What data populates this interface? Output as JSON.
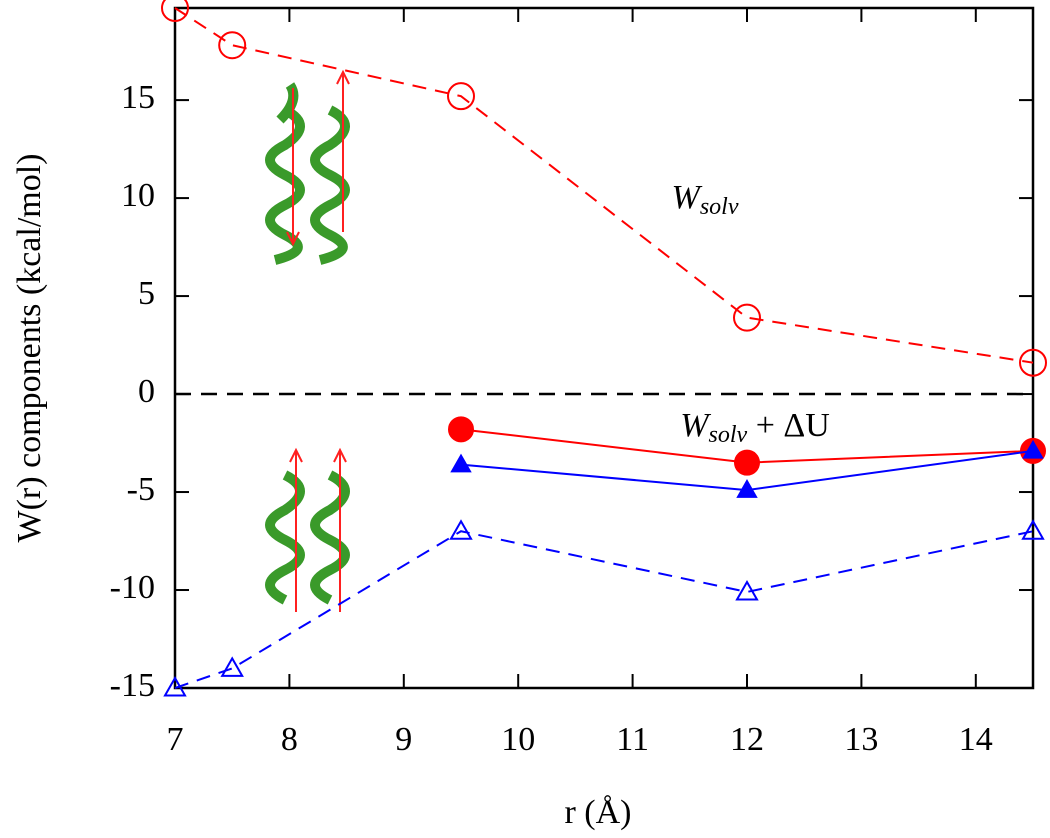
{
  "chart_data": {
    "type": "line",
    "xlabel": "r (Å)",
    "ylabel": "W(r) components (kcal/mol)",
    "xlim": [
      7,
      14.5
    ],
    "ylim": [
      -15,
      19.7
    ],
    "xticks": [
      7,
      8,
      9,
      10,
      11,
      12,
      13,
      14
    ],
    "yticks": [
      -15,
      -10,
      -5,
      0,
      5,
      10,
      15
    ],
    "zero_line": true,
    "annotations": [
      {
        "parts": [
          "W",
          "solv"
        ]
      },
      {
        "parts": [
          "W",
          "solv",
          " + ΔU"
        ]
      }
    ],
    "series": [
      {
        "color": "#ff0000",
        "linestyle": "dashed",
        "marker": "circle",
        "filled": false,
        "x": [
          7,
          7.5,
          9.5,
          12,
          14.5
        ],
        "values": [
          19.7,
          17.8,
          15.2,
          3.9,
          1.6
        ]
      },
      {
        "color": "#ff0000",
        "linestyle": "solid",
        "marker": "circle",
        "filled": true,
        "x": [
          9.5,
          12,
          14.5
        ],
        "values": [
          -1.8,
          -3.5,
          -2.9
        ]
      },
      {
        "color": "#0000ff",
        "linestyle": "solid",
        "marker": "triangle",
        "filled": true,
        "x": [
          9.5,
          12,
          14.5
        ],
        "values": [
          -3.6,
          -4.9,
          -2.9
        ]
      },
      {
        "color": "#0000ff",
        "linestyle": "dashed",
        "marker": "triangle",
        "filled": false,
        "x": [
          7,
          7.5,
          9.5,
          12,
          14.5
        ],
        "values": [
          -15,
          -14,
          -7,
          -10.1,
          -7
        ]
      }
    ]
  }
}
